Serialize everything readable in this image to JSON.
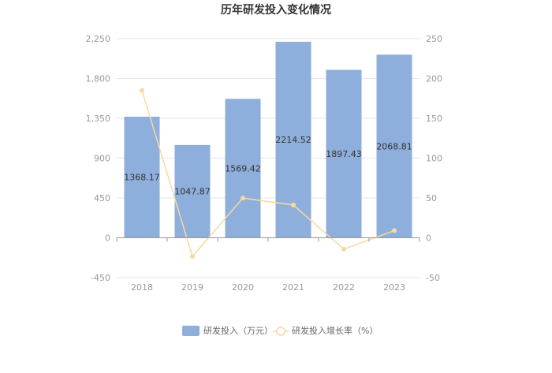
{
  "chart_data": {
    "type": "bar",
    "title": "历年研发投入变化情况",
    "categories": [
      "2018",
      "2019",
      "2020",
      "2021",
      "2022",
      "2023"
    ],
    "series": [
      {
        "name": "研发投入（万元）",
        "type": "bar",
        "axis": "left",
        "color": "#8eaedb",
        "values": [
          1368.17,
          1047.87,
          1569.42,
          2214.52,
          1897.43,
          2068.81
        ],
        "labels": [
          "1368.17",
          "1047.87",
          "1569.42",
          "2214.52",
          "1897.43",
          "2068.81"
        ]
      },
      {
        "name": "研发投入增长率（%）",
        "type": "line",
        "axis": "right",
        "color": "#f9d9a0",
        "values": [
          185,
          -23.4,
          49.8,
          41.1,
          -14.3,
          9.0
        ]
      }
    ],
    "y_left": {
      "min": -450,
      "max": 2250,
      "ticks": [
        -450,
        0,
        450,
        900,
        1350,
        1800,
        2250
      ],
      "tick_labels": [
        "-450",
        "0",
        "450",
        "900",
        "1,350",
        "1,800",
        "2,250"
      ]
    },
    "y_right": {
      "min": -50,
      "max": 250,
      "ticks": [
        -50,
        0,
        50,
        100,
        150,
        200,
        250
      ],
      "tick_labels": [
        "-50",
        "0",
        "50",
        "100",
        "150",
        "200",
        "250"
      ]
    },
    "grid": true,
    "legend_position": "bottom"
  }
}
